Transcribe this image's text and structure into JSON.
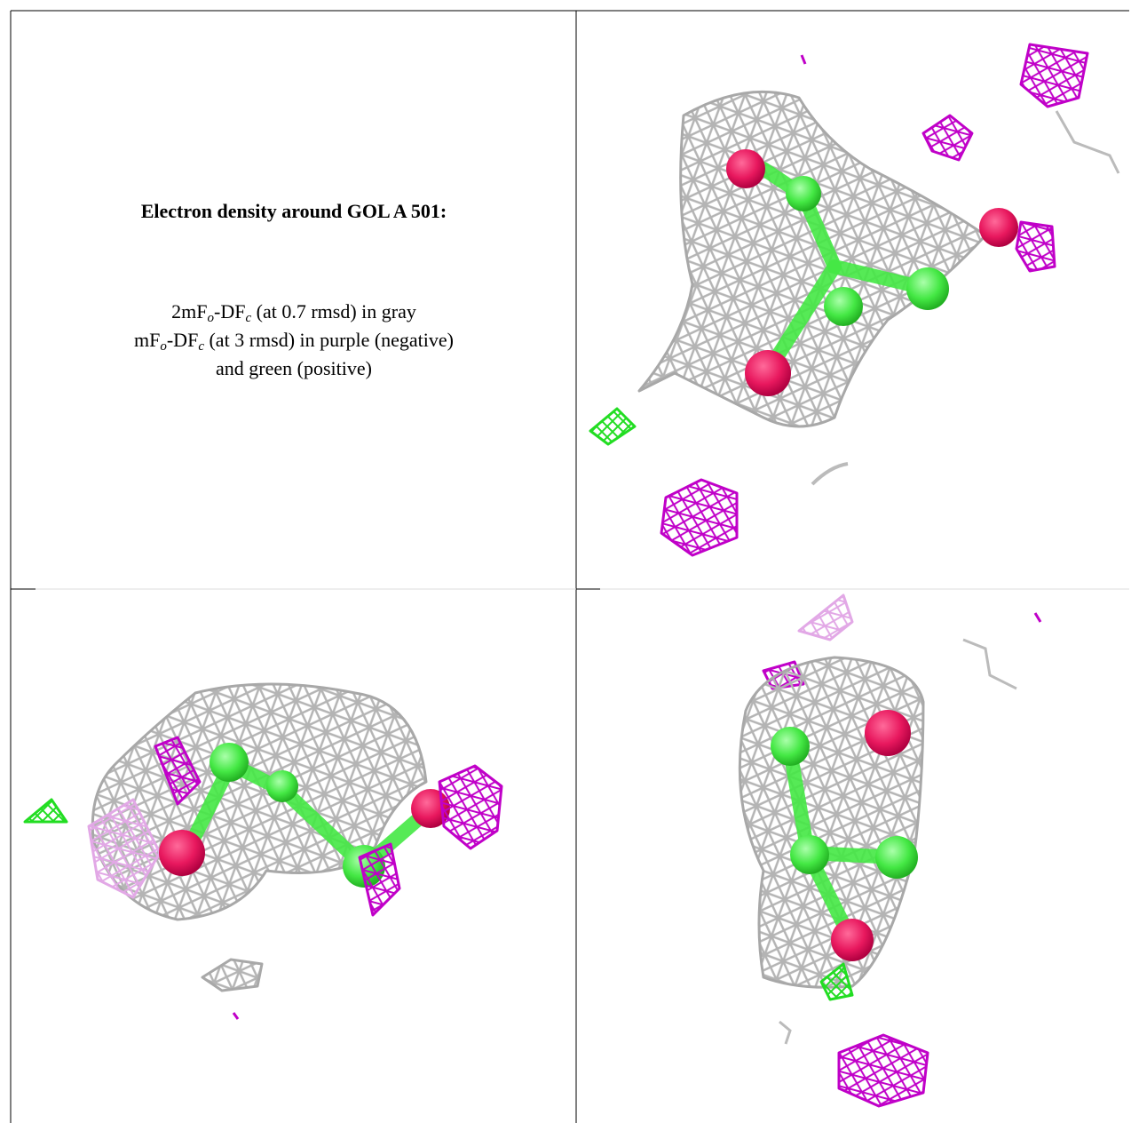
{
  "title": "Electron density around GOL A 501:",
  "legend_lines": [
    [
      {
        "text": "2mF"
      },
      {
        "text": "o",
        "sub": true
      },
      {
        "text": "-DF"
      },
      {
        "text": "c",
        "sub": true
      },
      {
        "text": " (at 0.7 rmsd) in gray"
      }
    ],
    [
      {
        "text": "mF"
      },
      {
        "text": "o",
        "sub": true
      },
      {
        "text": "-DF"
      },
      {
        "text": "c",
        "sub": true
      },
      {
        "text": " (at 3 rmsd) in purple (negative)"
      }
    ],
    [
      {
        "text": "and green (positive)"
      }
    ]
  ]
}
